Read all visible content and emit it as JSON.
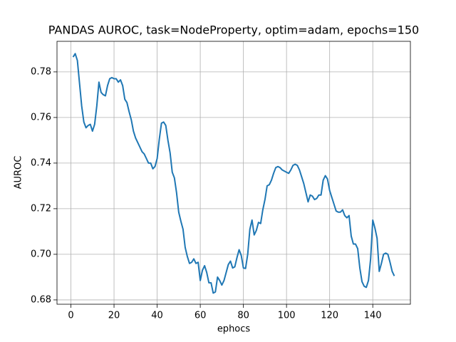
{
  "chart_data": {
    "type": "line",
    "title": "PANDAS AUROC, task=NodeProperty, optim=adam, epochs=150",
    "x_label": "ephocs",
    "y_label": "AUROC",
    "x": [
      1,
      2,
      3,
      4,
      5,
      6,
      7,
      8,
      9,
      10,
      11,
      12,
      13,
      14,
      15,
      16,
      17,
      18,
      19,
      20,
      21,
      22,
      23,
      24,
      25,
      26,
      27,
      28,
      29,
      30,
      31,
      32,
      33,
      34,
      35,
      36,
      37,
      38,
      39,
      40,
      41,
      42,
      43,
      44,
      45,
      46,
      47,
      48,
      49,
      50,
      51,
      52,
      53,
      54,
      55,
      56,
      57,
      58,
      59,
      60,
      61,
      62,
      63,
      64,
      65,
      66,
      67,
      68,
      69,
      70,
      71,
      72,
      73,
      74,
      75,
      76,
      77,
      78,
      79,
      80,
      81,
      82,
      83,
      84,
      85,
      86,
      87,
      88,
      89,
      90,
      91,
      92,
      93,
      94,
      95,
      96,
      97,
      98,
      99,
      100,
      101,
      102,
      103,
      104,
      105,
      106,
      107,
      108,
      109,
      110,
      111,
      112,
      113,
      114,
      115,
      116,
      117,
      118,
      119,
      120,
      121,
      122,
      123,
      124,
      125,
      126,
      127,
      128,
      129,
      130,
      131,
      132,
      133,
      134,
      135,
      136,
      137,
      138,
      139,
      140,
      141,
      142,
      143,
      144,
      145,
      146,
      147,
      148,
      149,
      150
    ],
    "values": [
      0.7865,
      0.788,
      0.785,
      0.775,
      0.765,
      0.758,
      0.7555,
      0.7565,
      0.757,
      0.754,
      0.757,
      0.765,
      0.7755,
      0.771,
      0.77,
      0.7695,
      0.774,
      0.777,
      0.7775,
      0.777,
      0.777,
      0.7755,
      0.7765,
      0.774,
      0.768,
      0.7665,
      0.7625,
      0.759,
      0.754,
      0.751,
      0.749,
      0.747,
      0.745,
      0.744,
      0.742,
      0.74,
      0.74,
      0.7375,
      0.7385,
      0.742,
      0.7505,
      0.7575,
      0.758,
      0.7565,
      0.75,
      0.7445,
      0.736,
      0.7335,
      0.727,
      0.7185,
      0.7145,
      0.711,
      0.703,
      0.699,
      0.696,
      0.6965,
      0.698,
      0.696,
      0.6965,
      0.6885,
      0.693,
      0.695,
      0.692,
      0.6875,
      0.6875,
      0.683,
      0.6835,
      0.69,
      0.6885,
      0.6865,
      0.6885,
      0.692,
      0.6955,
      0.697,
      0.694,
      0.6945,
      0.6985,
      0.702,
      0.6995,
      0.694,
      0.6938,
      0.7,
      0.711,
      0.715,
      0.7085,
      0.7105,
      0.714,
      0.7135,
      0.7195,
      0.724,
      0.73,
      0.7305,
      0.7325,
      0.7355,
      0.738,
      0.7385,
      0.738,
      0.737,
      0.7365,
      0.736,
      0.7355,
      0.737,
      0.739,
      0.7395,
      0.739,
      0.737,
      0.734,
      0.731,
      0.727,
      0.723,
      0.726,
      0.7255,
      0.724,
      0.7245,
      0.726,
      0.726,
      0.7325,
      0.7345,
      0.733,
      0.728,
      0.725,
      0.722,
      0.719,
      0.7185,
      0.7185,
      0.7195,
      0.717,
      0.716,
      0.717,
      0.708,
      0.7045,
      0.7045,
      0.7025,
      0.694,
      0.688,
      0.686,
      0.6855,
      0.6885,
      0.698,
      0.715,
      0.7115,
      0.707,
      0.6925,
      0.696,
      0.7,
      0.7005,
      0.7,
      0.6965,
      0.6925,
      0.6905
    ],
    "color": "#1f77b4",
    "xlim": [
      -6.45,
      157.45
    ],
    "xticks": [
      0,
      20,
      40,
      60,
      80,
      100,
      120,
      140
    ],
    "ylim": [
      0.6781,
      0.7934
    ],
    "yticks": [
      0.68,
      {
        "value": 0.7,
        "label": "0.70"
      },
      0.72,
      0.74,
      0.76,
      0.78
    ],
    "grid": true
  }
}
